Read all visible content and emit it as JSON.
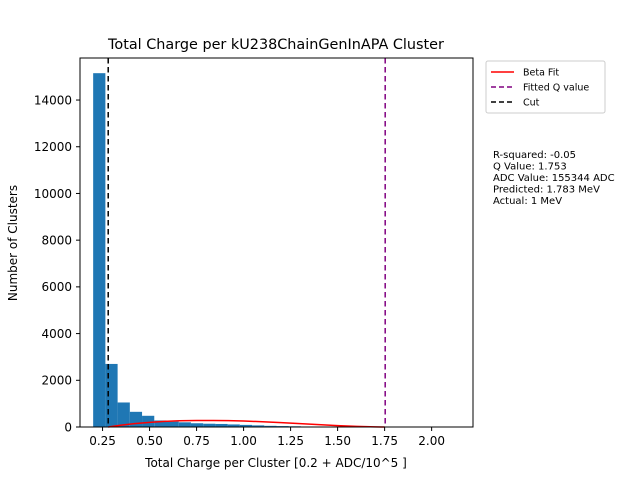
{
  "chart_data": {
    "type": "bar",
    "title": "Total Charge per kU238ChainGenInAPA Cluster",
    "xlabel": "Total Charge per Cluster [0.2 + ADC/10^5 ]",
    "ylabel": "Number of Clusters",
    "xlim": [
      0.13,
      2.22
    ],
    "ylim": [
      0,
      15800
    ],
    "xticks": [
      0.25,
      0.5,
      0.75,
      1.0,
      1.25,
      1.5,
      1.75,
      2.0
    ],
    "xtick_labels": [
      "0.25",
      "0.50",
      "0.75",
      "1.00",
      "1.25",
      "1.50",
      "1.75",
      "2.00"
    ],
    "yticks": [
      0,
      2000,
      4000,
      6000,
      8000,
      10000,
      12000,
      14000
    ],
    "ytick_labels": [
      "0",
      "2000",
      "4000",
      "6000",
      "8000",
      "10000",
      "12000",
      "14000"
    ],
    "bar_color": "#1f77b4",
    "bins": [
      {
        "x0": 0.2,
        "x1": 0.265,
        "count": 15150
      },
      {
        "x0": 0.265,
        "x1": 0.33,
        "count": 2700
      },
      {
        "x0": 0.33,
        "x1": 0.395,
        "count": 1050
      },
      {
        "x0": 0.395,
        "x1": 0.46,
        "count": 650
      },
      {
        "x0": 0.46,
        "x1": 0.525,
        "count": 480
      },
      {
        "x0": 0.525,
        "x1": 0.59,
        "count": 280
      },
      {
        "x0": 0.59,
        "x1": 0.655,
        "count": 230
      },
      {
        "x0": 0.655,
        "x1": 0.72,
        "count": 200
      },
      {
        "x0": 0.72,
        "x1": 0.785,
        "count": 160
      },
      {
        "x0": 0.785,
        "x1": 0.85,
        "count": 140
      },
      {
        "x0": 0.85,
        "x1": 0.915,
        "count": 130
      },
      {
        "x0": 0.915,
        "x1": 0.98,
        "count": 110
      },
      {
        "x0": 0.98,
        "x1": 1.045,
        "count": 90
      },
      {
        "x0": 1.045,
        "x1": 1.11,
        "count": 70
      },
      {
        "x0": 1.11,
        "x1": 1.175,
        "count": 50
      },
      {
        "x0": 1.175,
        "x1": 1.24,
        "count": 40
      },
      {
        "x0": 1.24,
        "x1": 1.305,
        "count": 30
      },
      {
        "x0": 1.305,
        "x1": 1.37,
        "count": 22
      },
      {
        "x0": 1.37,
        "x1": 1.435,
        "count": 16
      },
      {
        "x0": 1.435,
        "x1": 1.5,
        "count": 12
      },
      {
        "x0": 1.5,
        "x1": 1.565,
        "count": 8
      },
      {
        "x0": 1.565,
        "x1": 1.63,
        "count": 6
      },
      {
        "x0": 1.63,
        "x1": 1.695,
        "count": 4
      },
      {
        "x0": 1.695,
        "x1": 1.76,
        "count": 3
      },
      {
        "x0": 1.76,
        "x1": 1.825,
        "count": 2
      },
      {
        "x0": 1.825,
        "x1": 1.89,
        "count": 1
      },
      {
        "x0": 1.89,
        "x1": 1.955,
        "count": 1
      },
      {
        "x0": 1.955,
        "x1": 2.02,
        "count": 1
      },
      {
        "x0": 2.02,
        "x1": 2.085,
        "count": 0
      },
      {
        "x0": 2.085,
        "x1": 2.15,
        "count": 1
      }
    ],
    "beta_fit": {
      "label": "Beta Fit",
      "color": "#ff0000",
      "x": [
        0.28,
        0.35,
        0.42,
        0.5,
        0.58,
        0.66,
        0.75,
        0.84,
        0.92,
        1.0,
        1.1,
        1.2,
        1.3,
        1.4,
        1.5,
        1.6,
        1.7,
        1.75
      ],
      "y": [
        0,
        80,
        145,
        200,
        240,
        268,
        280,
        280,
        272,
        255,
        225,
        188,
        145,
        100,
        60,
        28,
        6,
        0
      ]
    },
    "lines": [
      {
        "label": "Fitted Q value",
        "x": 1.753,
        "color": "#800080",
        "style": "dashed"
      },
      {
        "label": "Cut",
        "x": 0.28,
        "color": "#000000",
        "style": "dashed"
      }
    ],
    "legend_position": "outside-top-right",
    "stats": [
      "R-squared: -0.05",
      "Q Value: 1.753",
      "ADC Value: 155344 ADC",
      "Predicted: 1.783 MeV",
      "Actual: 1 MeV"
    ]
  }
}
